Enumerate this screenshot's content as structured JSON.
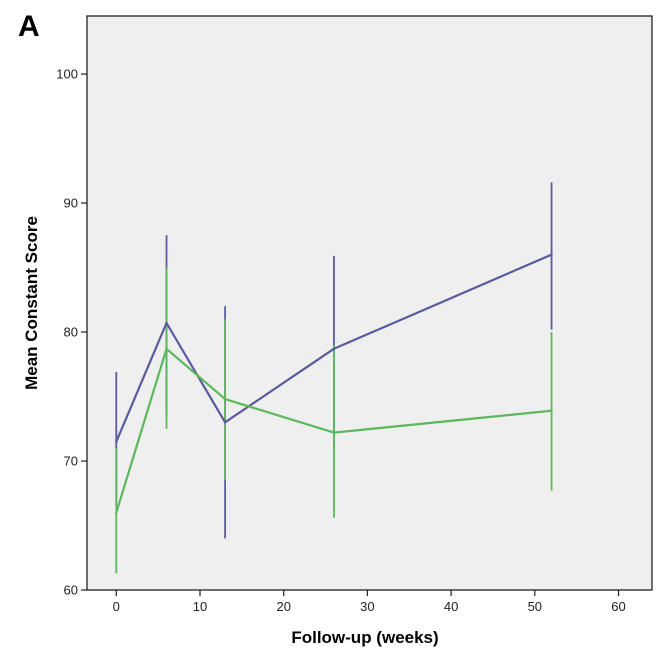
{
  "chart_data": {
    "type": "line",
    "panel_label": "A",
    "title": "",
    "xlabel": "Follow-up (weeks)",
    "ylabel": "Mean Constant Score",
    "xlim": [
      -3.5,
      64
    ],
    "ylim": [
      60,
      104.5
    ],
    "x_ticks": [
      0,
      10,
      20,
      30,
      40,
      50,
      60
    ],
    "y_ticks": [
      60,
      70,
      80,
      90,
      100
    ],
    "x_tick_labels": [
      "0",
      "10",
      "20",
      "30",
      "40",
      "50",
      "60"
    ],
    "y_tick_labels": [
      "60",
      "70",
      "80",
      "90",
      "100"
    ],
    "grid": false,
    "background": "#efefef",
    "series": [
      {
        "color": "#5a5aa0",
        "x": [
          0,
          6,
          13,
          26,
          52
        ],
        "y": [
          71.5,
          80.7,
          73.0,
          78.7,
          86.0
        ],
        "lower": [
          66.5,
          73.5,
          64.0,
          71.0,
          80.2
        ],
        "upper": [
          76.9,
          87.5,
          82.0,
          85.9,
          91.6
        ]
      },
      {
        "color": "#5cb85c",
        "x": [
          0,
          6,
          13,
          26,
          52
        ],
        "y": [
          66.0,
          78.7,
          74.8,
          72.2,
          73.9
        ],
        "lower": [
          61.3,
          72.5,
          68.5,
          65.6,
          67.7
        ],
        "upper": [
          71.0,
          85.0,
          81.0,
          79.0,
          80.0
        ]
      }
    ]
  }
}
